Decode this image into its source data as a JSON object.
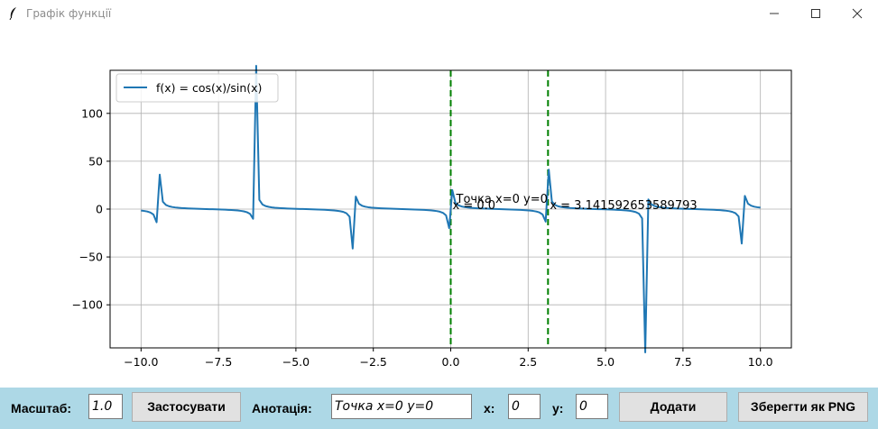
{
  "window": {
    "title": "Графік функції",
    "icons": {
      "app": "feather-icon",
      "minimize": "minimize-icon",
      "maximize": "maximize-icon",
      "close": "close-icon"
    }
  },
  "toolbar": {
    "scale_label": "Масштаб:",
    "scale_value": "1.0",
    "apply_button": "Застосувати",
    "annotation_label": "Анотація:",
    "annotation_value": "Точка x=0 y=0",
    "x_label": "x:",
    "x_value": "0",
    "y_label": "y:",
    "y_value": "0",
    "add_button": "Додати",
    "save_button": "Зберегти як PNG",
    "background_color": "#add8e6"
  },
  "chart_data": {
    "type": "line",
    "function": "cos(x)/sin(x)",
    "x_range": [
      -10,
      10
    ],
    "samples": 200,
    "xlim": [
      -11,
      11
    ],
    "ylim": [
      -145,
      145
    ],
    "xticks": [
      "−10.0",
      "−7.5",
      "−5.0",
      "−2.5",
      "0.0",
      "2.5",
      "5.0",
      "7.5",
      "10.0"
    ],
    "xtick_values": [
      -10,
      -7.5,
      -5,
      -2.5,
      0,
      2.5,
      5,
      7.5,
      10
    ],
    "yticks": [
      "100",
      "50",
      "0",
      "−50",
      "−100"
    ],
    "ytick_values": [
      100,
      50,
      0,
      -50,
      -100
    ],
    "grid": true,
    "series": [
      {
        "name": "f(x) = cos(x)/sin(x)",
        "color": "#1f77b4"
      }
    ],
    "legend_position": "top-left",
    "vlines": [
      {
        "x": 0,
        "label": "x = 0.0",
        "color": "#008000",
        "style": "dashed"
      },
      {
        "x": 3.141592653589793,
        "label": "x = 3.141592653589793",
        "color": "#008000",
        "style": "dashed"
      }
    ],
    "annotations": [
      {
        "text": "Точка x=0 y=0",
        "x": 0,
        "y": 0
      }
    ]
  }
}
